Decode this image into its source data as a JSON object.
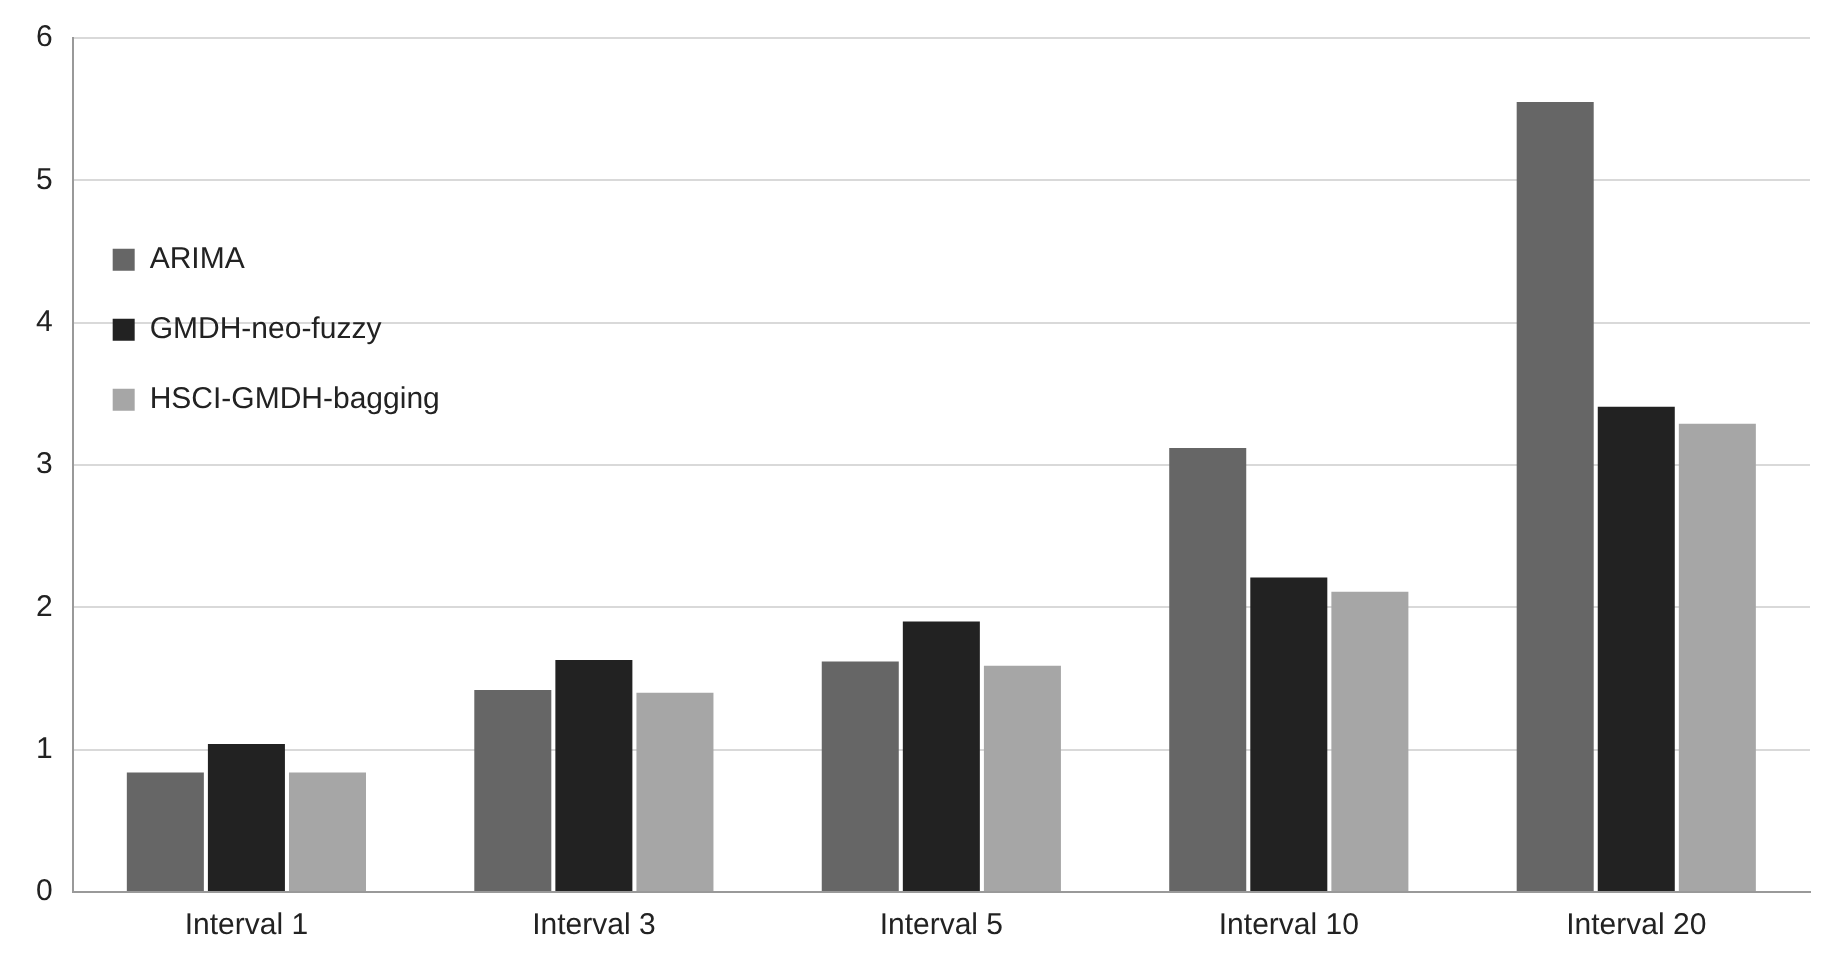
{
  "chart_data": {
    "type": "bar",
    "categories": [
      "Interval 1",
      "Interval 3",
      "Interval 5",
      "Interval 10",
      "Interval 20"
    ],
    "series": [
      {
        "name": "ARIMA",
        "color": "#666666",
        "values": [
          0.84,
          1.42,
          1.62,
          3.12,
          5.55
        ]
      },
      {
        "name": "GMDH-neo-fuzzy",
        "color": "#222222",
        "values": [
          1.04,
          1.63,
          1.9,
          2.21,
          3.41
        ]
      },
      {
        "name": "HSCI-GMDH-bagging",
        "color": "#a6a6a6",
        "values": [
          0.84,
          1.4,
          1.59,
          2.11,
          3.29
        ]
      }
    ],
    "ylim": [
      0,
      6
    ],
    "yticks": [
      0,
      1,
      2,
      3,
      4,
      5,
      6
    ],
    "grid": "y",
    "legend": "top left"
  }
}
